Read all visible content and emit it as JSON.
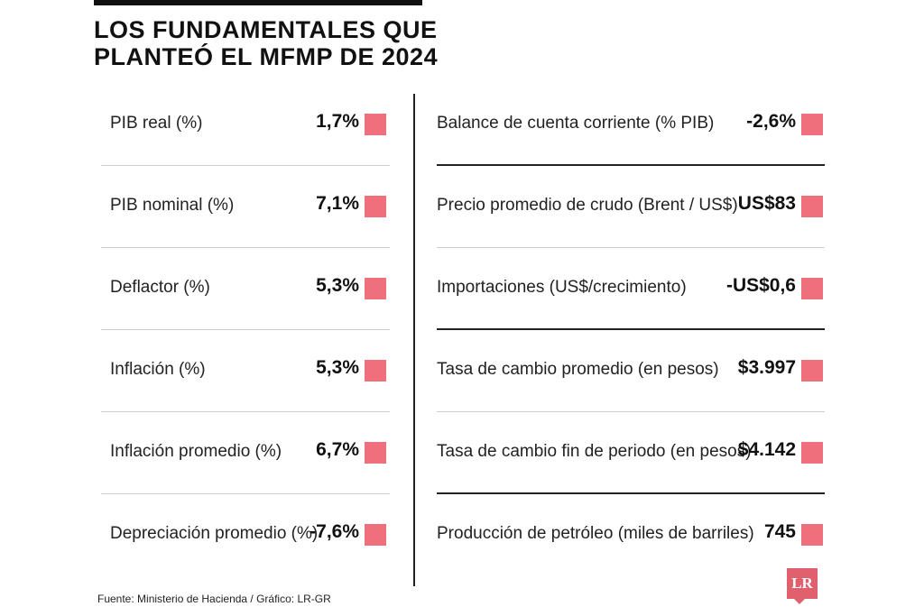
{
  "title": {
    "line1": "LOS FUNDAMENTALES QUE",
    "line2": "PLANTEÓ EL MFMP DE 2024"
  },
  "left": [
    {
      "label": "PIB real (%)",
      "value": "1,7%"
    },
    {
      "label": "PIB nominal (%)",
      "value": "7,1%"
    },
    {
      "label": "Deflactor (%)",
      "value": "5,3%"
    },
    {
      "label": "Inflación (%)",
      "value": "5,3%"
    },
    {
      "label": "Inflación promedio (%)",
      "value": "6,7%"
    },
    {
      "label": "Depreciación promedio (%)",
      "value": "-7,6%"
    }
  ],
  "right": [
    {
      "label": "Balance de cuenta corriente (% PIB)",
      "value": "-2,6%"
    },
    {
      "label": "Precio promedio de crudo (Brent / US$)",
      "value": "US$83"
    },
    {
      "label": "Importaciones (US$/crecimiento)",
      "value": "-US$0,6"
    },
    {
      "label": "Tasa de cambio promedio (en pesos)",
      "value": "$3.997"
    },
    {
      "label": "Tasa de cambio fin de periodo (en pesos)",
      "value": "$4.142"
    },
    {
      "label": "Producción de petróleo (miles de barriles)",
      "value": "745"
    }
  ],
  "source": "Fuente: Ministerio de Hacienda / Gráfico: LR-GR",
  "logo_text": "LR",
  "colors": {
    "swatch": "#ef6f7d",
    "logo": "#e0606e"
  }
}
